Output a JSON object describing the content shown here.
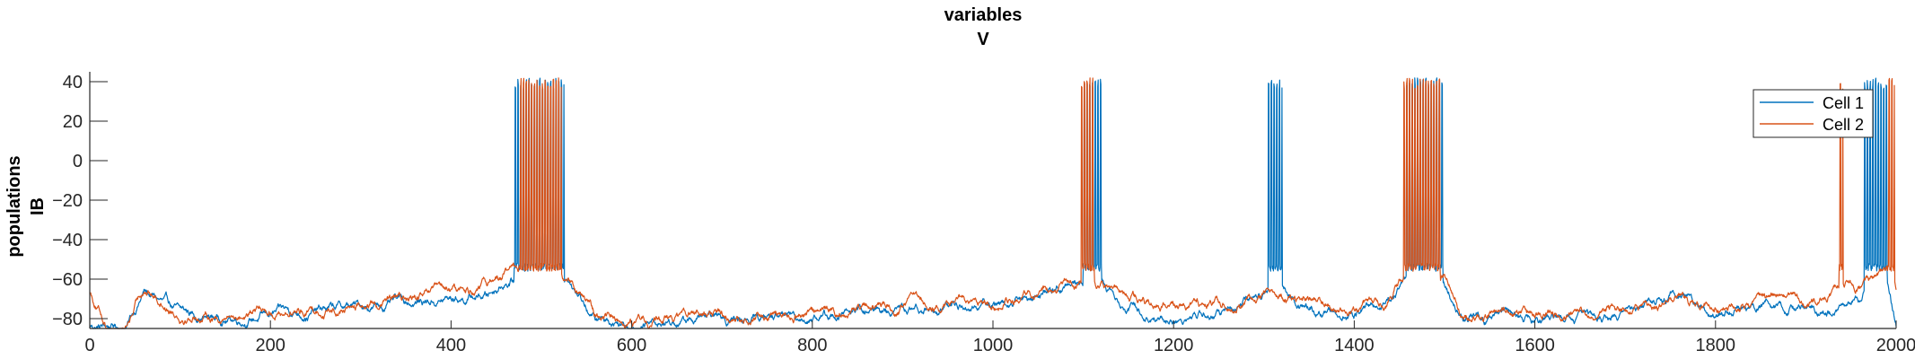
{
  "chart_data": {
    "type": "line",
    "title": [
      "variables",
      "V"
    ],
    "ylabel": [
      "populations",
      "IB"
    ],
    "xlim": [
      0,
      2000
    ],
    "ylim": [
      -85,
      45
    ],
    "x_ticks": [
      0,
      200,
      400,
      600,
      800,
      1000,
      1200,
      1400,
      1600,
      1800,
      2000
    ],
    "y_ticks": [
      -80,
      -60,
      -40,
      -20,
      0,
      20,
      40
    ],
    "grid": false,
    "legend_position": "top-right",
    "series": [
      {
        "name": "Cell 1",
        "color": "#0072BD",
        "baseline": [
          [
            0,
            -84
          ],
          [
            20,
            -84
          ],
          [
            40,
            -84
          ],
          [
            60,
            -66
          ],
          [
            100,
            -78
          ],
          [
            150,
            -80
          ],
          [
            200,
            -78
          ],
          [
            300,
            -74
          ],
          [
            350,
            -72
          ],
          [
            400,
            -70
          ],
          [
            440,
            -68
          ],
          [
            460,
            -60
          ],
          [
            530,
            -58
          ],
          [
            560,
            -80
          ],
          [
            600,
            -82
          ],
          [
            700,
            -80
          ],
          [
            800,
            -78
          ],
          [
            900,
            -76
          ],
          [
            1000,
            -72
          ],
          [
            1060,
            -68
          ],
          [
            1090,
            -62
          ],
          [
            1120,
            -60
          ],
          [
            1150,
            -74
          ],
          [
            1200,
            -80
          ],
          [
            1250,
            -78
          ],
          [
            1300,
            -70
          ],
          [
            1320,
            -62
          ],
          [
            1340,
            -72
          ],
          [
            1400,
            -78
          ],
          [
            1440,
            -70
          ],
          [
            1455,
            -62
          ],
          [
            1500,
            -64
          ],
          [
            1520,
            -80
          ],
          [
            1600,
            -80
          ],
          [
            1700,
            -78
          ],
          [
            1760,
            -68
          ],
          [
            1800,
            -76
          ],
          [
            1900,
            -74
          ],
          [
            1960,
            -70
          ],
          [
            1975,
            -60
          ],
          [
            1990,
            -60
          ],
          [
            2000,
            -84
          ]
        ],
        "burst_windows": [
          [
            470,
            525
          ],
          [
            1100,
            1120
          ],
          [
            1305,
            1320
          ],
          [
            1458,
            1498
          ],
          [
            1965,
            1990
          ]
        ]
      },
      {
        "name": "Cell 2",
        "color": "#D95319",
        "baseline": [
          [
            0,
            -66
          ],
          [
            20,
            -84
          ],
          [
            40,
            -84
          ],
          [
            60,
            -64
          ],
          [
            100,
            -76
          ],
          [
            150,
            -78
          ],
          [
            200,
            -76
          ],
          [
            300,
            -73
          ],
          [
            350,
            -71
          ],
          [
            400,
            -68
          ],
          [
            440,
            -64
          ],
          [
            460,
            -56
          ],
          [
            520,
            -54
          ],
          [
            560,
            -78
          ],
          [
            600,
            -80
          ],
          [
            700,
            -78
          ],
          [
            800,
            -76
          ],
          [
            900,
            -74
          ],
          [
            1000,
            -70
          ],
          [
            1060,
            -66
          ],
          [
            1090,
            -60
          ],
          [
            1120,
            -64
          ],
          [
            1150,
            -70
          ],
          [
            1200,
            -76
          ],
          [
            1250,
            -74
          ],
          [
            1300,
            -68
          ],
          [
            1340,
            -72
          ],
          [
            1400,
            -74
          ],
          [
            1440,
            -68
          ],
          [
            1455,
            -58
          ],
          [
            1500,
            -60
          ],
          [
            1520,
            -78
          ],
          [
            1600,
            -78
          ],
          [
            1700,
            -76
          ],
          [
            1760,
            -70
          ],
          [
            1800,
            -74
          ],
          [
            1900,
            -70
          ],
          [
            1935,
            -64
          ],
          [
            1960,
            -66
          ],
          [
            1990,
            -56
          ],
          [
            2000,
            -66
          ]
        ],
        "burst_windows": [
          [
            475,
            522
          ],
          [
            1098,
            1112
          ],
          [
            1455,
            1495
          ],
          [
            1937,
            1941
          ],
          [
            1990,
            1998
          ]
        ]
      }
    ]
  }
}
